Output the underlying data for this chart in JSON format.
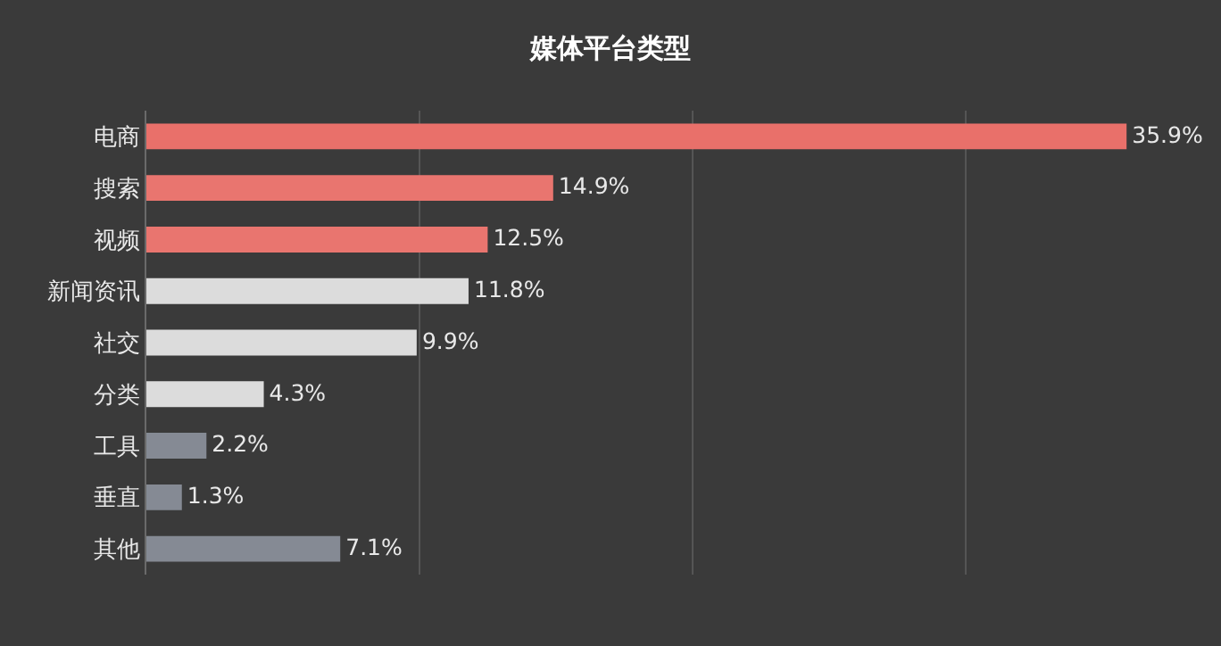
{
  "chart_data": {
    "type": "bar",
    "title": "媒体平台类型",
    "orientation": "horizontal",
    "categories": [
      "电商",
      "搜索",
      "视频",
      "新闻资讯",
      "社交",
      "分类",
      "工具",
      "垂直",
      "其他"
    ],
    "values": [
      35.9,
      14.9,
      12.5,
      11.8,
      9.9,
      4.3,
      2.2,
      1.3,
      7.1
    ],
    "value_labels": [
      "35.9%",
      "14.9%",
      "12.5%",
      "11.8%",
      "9.9%",
      "4.3%",
      "2.2%",
      "1.3%",
      "7.1%"
    ],
    "colors": [
      "#e9706a",
      "#e9756f",
      "#e9756f",
      "#dcdcdc",
      "#dcdcdc",
      "#dcdcdc",
      "#858a94",
      "#858a94",
      "#858a94"
    ],
    "grid": "x",
    "tick_labels": "y",
    "legend": false
  }
}
